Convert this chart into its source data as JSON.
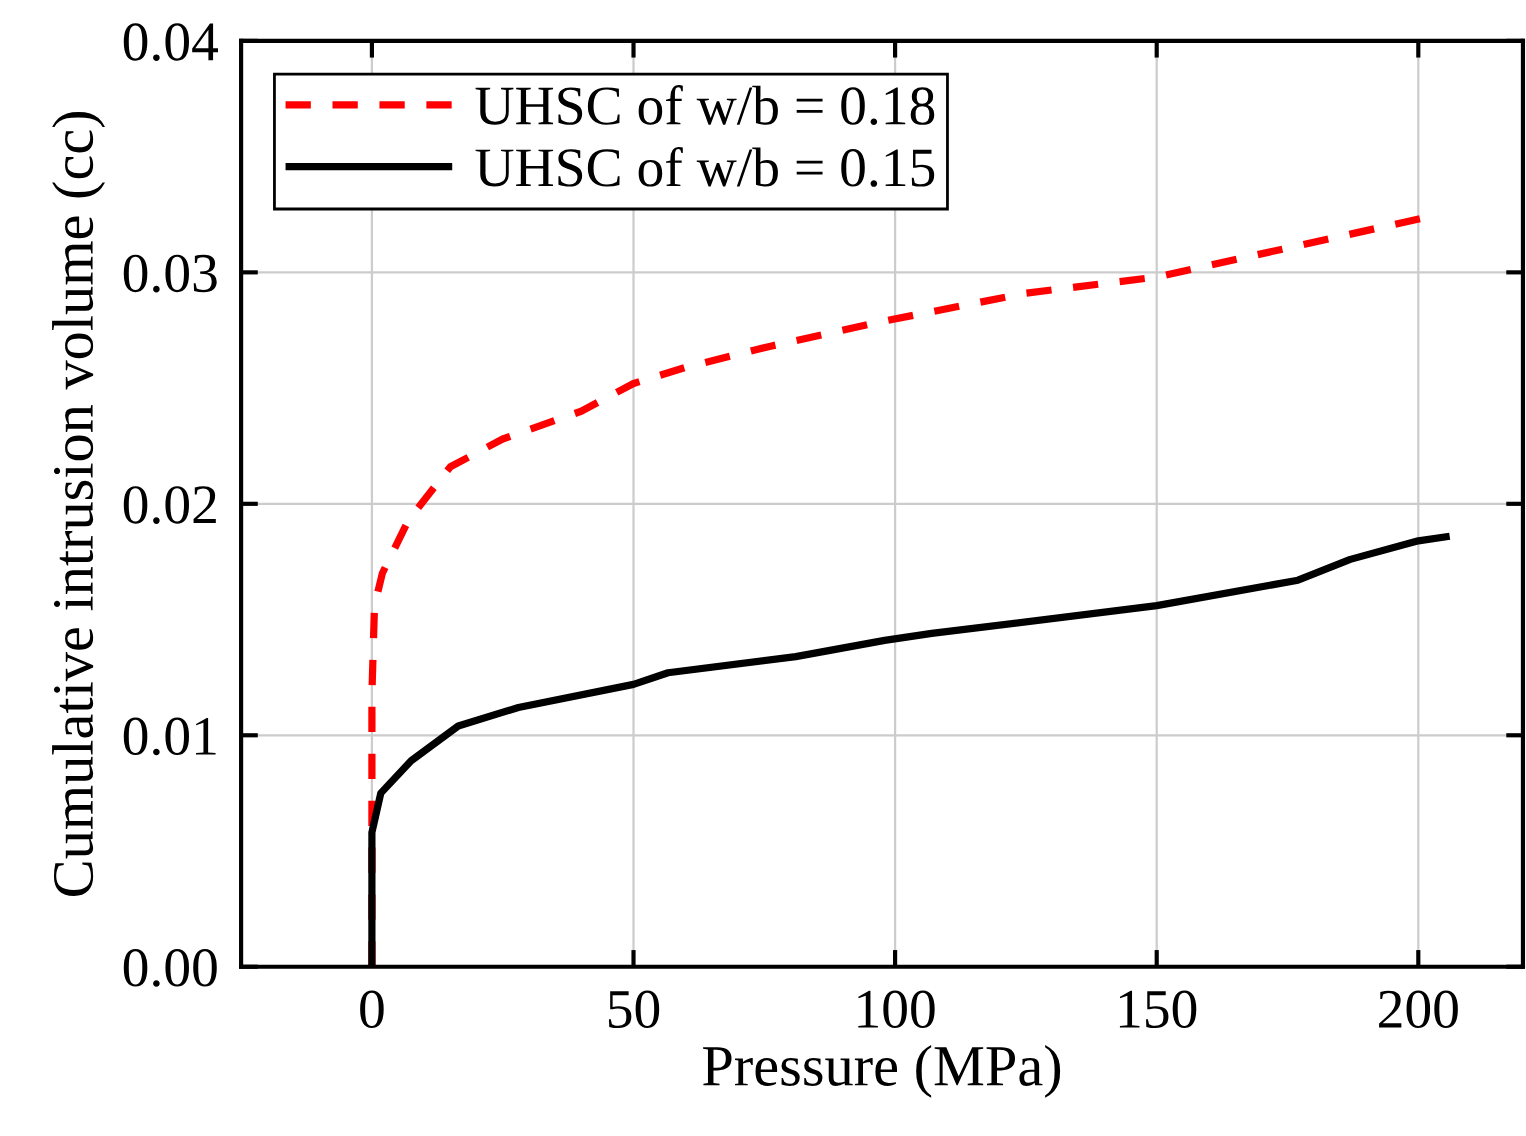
{
  "chart_data": {
    "type": "line",
    "xlabel": "Pressure (MPa)",
    "ylabel": "Cumulative intrusion volume (cc)",
    "xlim": [
      -25,
      220
    ],
    "ylim": [
      0,
      0.04
    ],
    "xticks": [
      0,
      50,
      100,
      150,
      200
    ],
    "yticks": [
      {
        "value": 0,
        "label": "0.00"
      },
      {
        "value": 0.01,
        "label": "0.01"
      },
      {
        "value": 0.02,
        "label": "0.02"
      },
      {
        "value": 0.03,
        "label": "0.03"
      },
      {
        "value": 0.04,
        "label": "0.04"
      }
    ],
    "grid": true,
    "legend": "top left",
    "marker": "none",
    "series": [
      {
        "name": "UHSC of w/b = 0.18",
        "color": "#ff0000",
        "line_style": "dashed",
        "x": [
          0,
          0,
          0,
          0.5,
          2,
          7,
          15,
          25,
          40,
          50,
          60,
          76,
          98,
          125,
          150,
          174,
          202
        ],
        "values": [
          0,
          0.006,
          0.0118,
          0.0156,
          0.017,
          0.0193,
          0.0216,
          0.0228,
          0.024,
          0.0252,
          0.0259,
          0.0268,
          0.0279,
          0.0291,
          0.0298,
          0.031,
          0.0324
        ]
      },
      {
        "name": "UHSC of w/b = 0.15",
        "color": "#000000",
        "line_style": "solid",
        "x": [
          0,
          0,
          1.7,
          7.5,
          16.5,
          28,
          50,
          56.6,
          81,
          98,
          107,
          150,
          177,
          187,
          200,
          206
        ],
        "values": [
          0,
          0.0058,
          0.0075,
          0.0089,
          0.0104,
          0.0112,
          0.0122,
          0.0127,
          0.0134,
          0.0141,
          0.0144,
          0.0156,
          0.0167,
          0.0176,
          0.0184,
          0.0186
        ]
      }
    ]
  }
}
